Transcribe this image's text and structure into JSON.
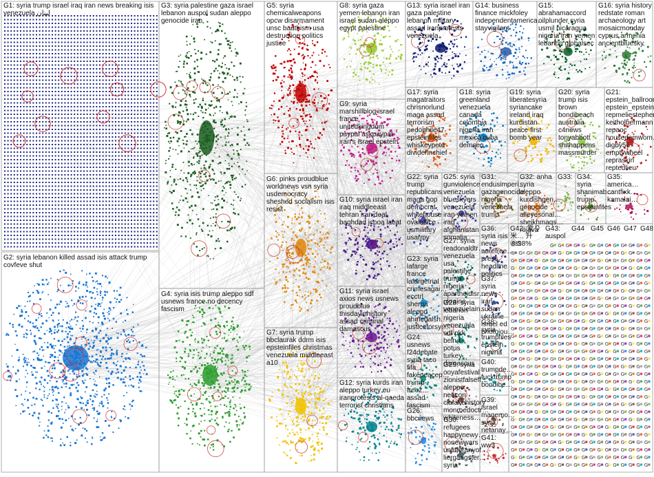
{
  "graph": {
    "background": "#ffffff",
    "edge_color": "#b8b8b8",
    "border_color": "#9a9a9a",
    "groups": [
      {
        "id": "G1",
        "label": "G1: syria trump israel iraq iran news breaking isis venezuela لبنان",
        "color": "#1a237e",
        "layout": "grid"
      },
      {
        "id": "G2",
        "label": "G2: syria lebanon killed assad isis attack trump covfeve shut",
        "color": "#1976d2",
        "layout": "cluster"
      },
      {
        "id": "G3",
        "label": "G3: syria palestine gaza israel lebanon auspol sudan aleppo genocide iran",
        "color": "#1b5e20",
        "layout": "cluster"
      },
      {
        "id": "G4",
        "label": "G4: syria isis trump aleppo sdf usnews france no decency fascism",
        "color": "#2e9e2e",
        "layout": "cluster"
      },
      {
        "id": "G5",
        "label": "G5: syria chemicalweapons opcw disarmament unsc baathism usa destruction politics justice",
        "color": "#c00000",
        "layout": "cluster"
      },
      {
        "id": "G6",
        "label": "G6: pinks proudblue worldnews vsn syria usdemocracy sheshed socialism isis resist",
        "color": "#e08a10",
        "layout": "cluster"
      },
      {
        "id": "G7",
        "label": "G7: syria trump bbclaurak ddrm isis epsteinfiles christmas venezuela middleeast a10",
        "color": "#f2c200",
        "layout": "cluster"
      },
      {
        "id": "G8",
        "label": "G8: syria gaza yemen lebanon iran israel sudan aleppo egypt palestine",
        "color": "#9acd32",
        "layout": "cluster"
      },
      {
        "id": "G9",
        "label": "G9: syria marshillblog israel france unitedkingdom paypal askpaypal iran's israel epstein",
        "color": "#c0188c",
        "layout": "cluster"
      },
      {
        "id": "G10",
        "label": "G10: syria israel iran iraq middleeast tehran iranideal baghdad jcpoa laeat",
        "color": "#4a148c",
        "layout": "cluster"
      },
      {
        "id": "G11",
        "label": "G11: syria israel axios news usnews proudblue thisdayinhistory assad criminal damascus",
        "color": "#6a1b9a",
        "layout": "cluster"
      },
      {
        "id": "G12",
        "label": "G12: syria kurds iran aleppo turkey eu iranprotests al-qaeda terrorist christians",
        "color": "#00838f",
        "layout": "cluster"
      },
      {
        "id": "G13",
        "label": "G13: syria israel iran gaza palestine lebanon military assad iranprotests venezuela",
        "color": "#0d1b6e",
        "layout": "cluster"
      },
      {
        "id": "G14",
        "label": "G14: business finance mickfoley independentamerica… stayvigilant",
        "color": "#1565c0",
        "layout": "cluster"
      },
      {
        "id": "G15",
        "label": "G15: abrahamaccord oilplunder syria usmil nicaragua nigeria iran yemen lebanon globalsec",
        "color": "#0a5e2a",
        "layout": "cluster"
      },
      {
        "id": "G16",
        "label": "G16: syria history redstate roman archaeology art mosaicmonday cyprus armenia ancientbluesky",
        "color": "#2e7d32",
        "layout": "cluster"
      },
      {
        "id": "G17",
        "label": "G17: syria magatraitors chrisnorlund maga assad terrorism pedophile47 epsteinfiles whiskeypete dividerinchief",
        "color": "#e05a10",
        "layout": "cluster"
      },
      {
        "id": "G18",
        "label": "G18: syria greenland venezuela canada colombia nigeria iran mexico cuba demseo",
        "color": "#0277bd",
        "layout": "cluster"
      },
      {
        "id": "G19",
        "label": "G19: syria liberatesyria syriancake ireland iraq kurdistan peace first bomb year",
        "color": "#f0b400",
        "layout": "cluster"
      },
      {
        "id": "G20",
        "label": "G20: syria trump isis brown bondibeach australia c4news tonyabbott shithappens massmurder",
        "color": "#8bc34a",
        "layout": "cluster"
      },
      {
        "id": "G21",
        "label": "G21: epstein_ballroom epstein_epstein… repmeliestephens keitholbermann repaoc housedemwom… digby56 emptywheel repraskin reptedlieu",
        "color": "#b71c1c",
        "layout": "cluster"
      },
      {
        "id": "G22",
        "label": "G22: syria trump republicans maga gop democrat whitehouse ovaloffice usmilitary usarmy",
        "color": "#3949ab",
        "layout": "cluster"
      },
      {
        "id": "G23",
        "label": "G23: syria lafarge france lafargetrial crimesagai… ecctrl sherpa aleppo ahmedalsh… justiceforsyr…",
        "color": "#0288d1",
        "layout": "cluster"
      },
      {
        "id": "G24",
        "label": "G24: usnews f24debate syria taco fifa fakepeacep… trump-freez… assad fascism",
        "color": "#00897b",
        "layout": "cluster"
      },
      {
        "id": "G25",
        "label": "G25: syria gunviolence venezuela blueskyers venezuela iran yemen iraq afghanistan somalia",
        "color": "#303f9f",
        "layout": "cluster"
      },
      {
        "id": "G26",
        "label": "G26: bbcnews",
        "color": "#1e88e5",
        "layout": "cluster"
      },
      {
        "id": "G27",
        "label": "G27: syria readonaldtr… venezuela usa palestine trump nigeria apartheidisr… ukraine venezuelain…",
        "color": "#00695c",
        "layout": "cluster"
      },
      {
        "id": "G28",
        "label": "G28: syria lebanon nigeria venezuela sdf pkk beirut potus turkey damascus",
        "color": "#00796b",
        "layout": "cluster"
      },
      {
        "id": "G29",
        "label": "G29: syria ooyafestival zionistfalseff… aleppo neocon ciafakehistory monroedoctr… whiteness…",
        "color": "#5d4037",
        "layout": "cluster"
      },
      {
        "id": "G30",
        "label": "G30: refugees happynewy… nonewwars unfitforanyof… liergangster… syria",
        "color": "#455a64",
        "layout": "cluster"
      },
      {
        "id": "G31",
        "label": "G31: endusimperi… gazagenocide nigeria venezuela trump",
        "color": "#827717",
        "layout": "cluster"
      },
      {
        "id": "G32",
        "label": "G32: anha syria aleppo kurdishgen… genocide alleyesonal… sheikhmaqs… rojava",
        "color": "#f57f17",
        "layout": "cluster"
      },
      {
        "id": "G33",
        "label": "G33:",
        "color": "#7cb342",
        "layout": "cluster"
      },
      {
        "id": "G34",
        "label": "G34: syria shanimab… trump epsteinfiles",
        "color": "#558b2f",
        "layout": "cluster"
      },
      {
        "id": "G35",
        "label": "G35: america… cantfixk… kamalai…",
        "color": "#ad1457",
        "layout": "cluster"
      },
      {
        "id": "G36",
        "label": "G36: syria isis news aurefree… press headline politics",
        "color": "#283593",
        "layout": "cluster"
      },
      {
        "id": "G37",
        "label": "G37: syria news iran sudan ukraine israel ed photojou…",
        "color": "#1e3a8a",
        "layout": "cluster"
      },
      {
        "id": "G38",
        "label": "G38: syria trumpfiles epstein nigeria",
        "color": "#00838f",
        "layout": "cluster"
      },
      {
        "id": "G39",
        "label": "G39: israel magemo… syria netanay…",
        "color": "#6d4c41",
        "layout": "cluster"
      },
      {
        "id": "G40",
        "label": "G40: trumpde… fucktrump bondibe…",
        "color": "#0097a7",
        "layout": "cluster"
      },
      {
        "id": "G41",
        "label": "G41: ww3",
        "color": "#c62828",
        "layout": "cluster"
      },
      {
        "id": "G42",
        "label": "G42: 爱り米… 升 ⓇS8%",
        "color": "#6a1b9a",
        "layout": "cluster"
      },
      {
        "id": "G43",
        "label": "G43: auspol",
        "color": "#ef6c00",
        "layout": "cluster"
      },
      {
        "id": "G44",
        "label": "G44",
        "color": "#ffeb3b",
        "layout": "cluster"
      },
      {
        "id": "G45",
        "label": "G45",
        "color": "#e91e63",
        "layout": "cluster"
      },
      {
        "id": "G46",
        "label": "G46",
        "color": "#8e24aa",
        "layout": "cluster"
      },
      {
        "id": "G47",
        "label": "G47",
        "color": "#4caf50",
        "layout": "cluster"
      },
      {
        "id": "G48",
        "label": "G48",
        "color": "#ff5722",
        "layout": "cluster"
      },
      {
        "id": "G49",
        "label": "G49",
        "color": "#1e88e5",
        "layout": "cluster"
      },
      {
        "id": "G50",
        "label": "G50",
        "color": "#8d6e63",
        "layout": "cluster"
      },
      {
        "id": "G51",
        "label": "G51",
        "color": "#43a047",
        "layout": "cluster"
      },
      {
        "id": "G52",
        "label": "G52",
        "color": "#3949ab",
        "layout": "cluster"
      },
      {
        "id": "G53",
        "label": "G53",
        "color": "#e53935",
        "layout": "cluster"
      },
      {
        "id": "G54",
        "label": "G54",
        "color": "#fdd835",
        "layout": "cluster"
      },
      {
        "id": "G55",
        "label": "G55",
        "color": "#00acc1",
        "layout": "cluster"
      },
      {
        "id": "G56",
        "label": "G56",
        "color": "#7b1fa2",
        "layout": "cluster"
      },
      {
        "id": "G57",
        "label": "G57",
        "color": "#f4511e",
        "layout": "cluster"
      }
    ],
    "small_group_glyph": "G",
    "small_group_colors": [
      "#7cb342",
      "#ef6c00",
      "#e91e63",
      "#8e24aa",
      "#ffeb3b",
      "#43a047",
      "#1e88e5",
      "#c62828",
      "#00acc1",
      "#8d6e63",
      "#3949ab",
      "#f4511e",
      "#fdd835",
      "#6d4c41",
      "#9e9e9e"
    ]
  }
}
